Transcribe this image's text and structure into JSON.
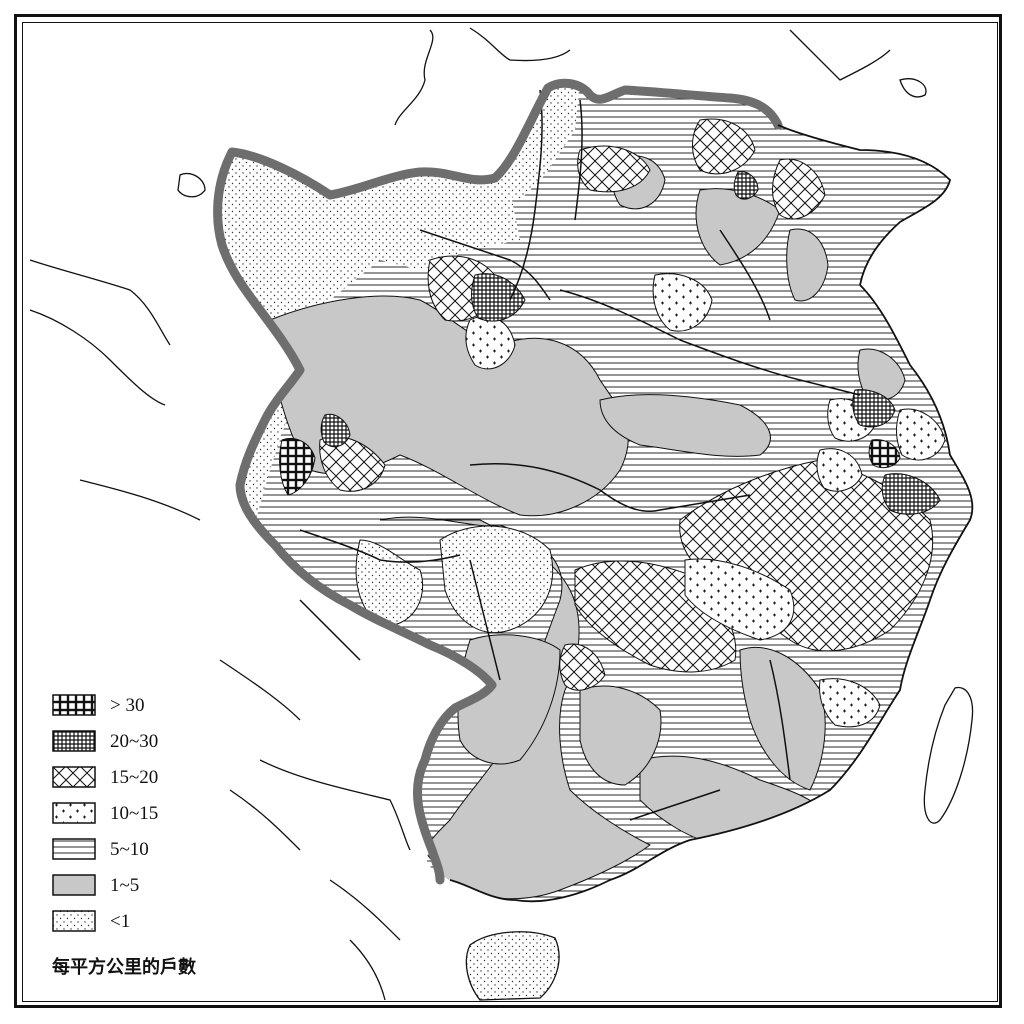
{
  "legend": {
    "caption": "每平方公里的戶數",
    "items": [
      {
        "label": "> 30",
        "pattern": "square-grid-dense",
        "fill": "#000000"
      },
      {
        "label": "20~30",
        "pattern": "fine-crosshatch",
        "fill": "#333333"
      },
      {
        "label": "15~20",
        "pattern": "diagonal-crosshatch",
        "fill": "#ffffff"
      },
      {
        "label": "10~15",
        "pattern": "plus-dots",
        "fill": "#ffffff"
      },
      {
        "label": "5~10",
        "pattern": "horizontal-lines",
        "fill": "#ffffff"
      },
      {
        "label": "1~5",
        "pattern": "solid-gray",
        "fill": "#c8c8c8"
      },
      {
        "label": "<1",
        "pattern": "stipple",
        "fill": "#ffffff"
      }
    ]
  },
  "colors": {
    "boundary": "#6e6e6e",
    "gray": "#c8c8c8",
    "ink": "#111111"
  }
}
